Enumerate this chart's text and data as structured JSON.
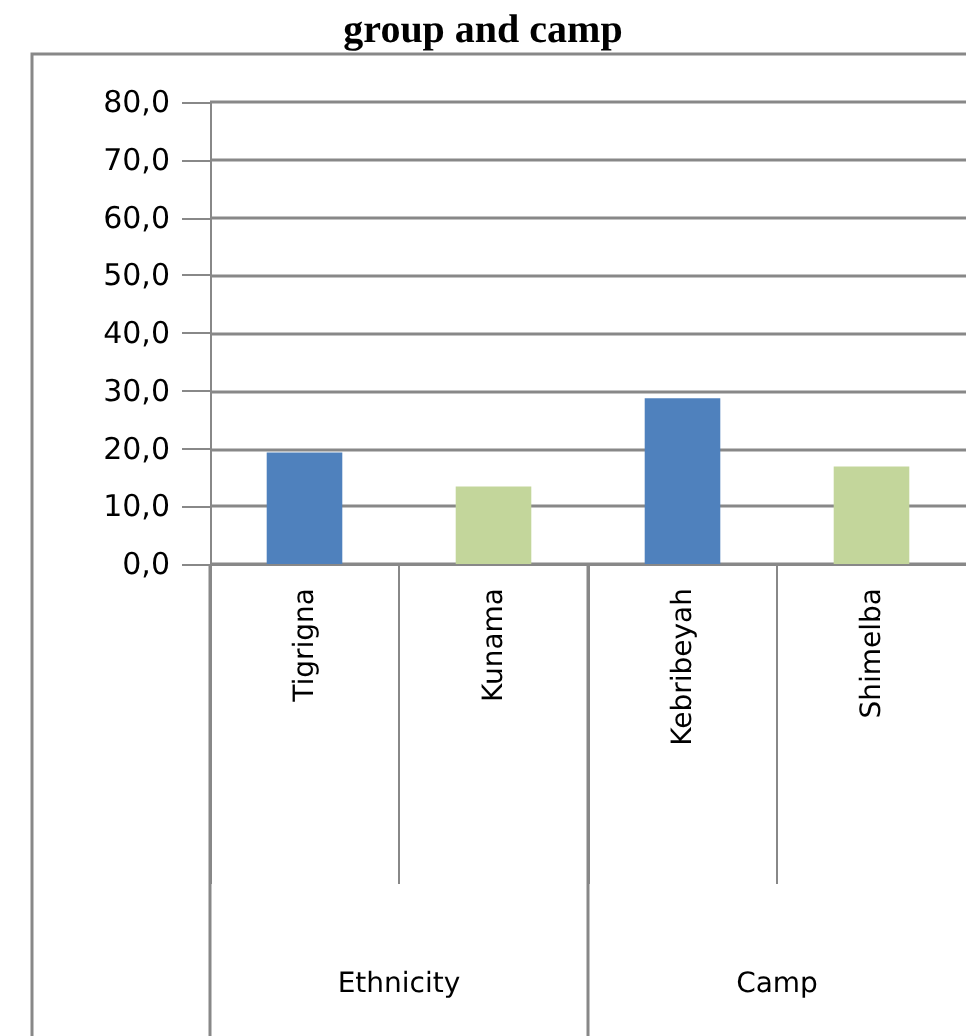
{
  "chart_data": {
    "type": "bar",
    "title": "group and camp",
    "categories": [
      "Tigrigna",
      "Kunama",
      "Kebribeyah",
      "Shimelba"
    ],
    "values": [
      19.3,
      13.4,
      28.7,
      16.9
    ],
    "colors": [
      "#4f81bd",
      "#c3d69b",
      "#4f81bd",
      "#c3d69b"
    ],
    "ylim": [
      0,
      80
    ],
    "yticks": [
      {
        "value": 0,
        "label": "0,0"
      },
      {
        "value": 10,
        "label": "10,0"
      },
      {
        "value": 20,
        "label": "20,0"
      },
      {
        "value": 30,
        "label": "30,0"
      },
      {
        "value": 40,
        "label": "40,0"
      },
      {
        "value": 50,
        "label": "50,0"
      },
      {
        "value": 60,
        "label": "60,0"
      },
      {
        "value": 70,
        "label": "70,0"
      },
      {
        "value": 80,
        "label": "80,0"
      }
    ],
    "annotations": [
      "Ethnicity",
      "Camp"
    ],
    "grid": "y"
  }
}
